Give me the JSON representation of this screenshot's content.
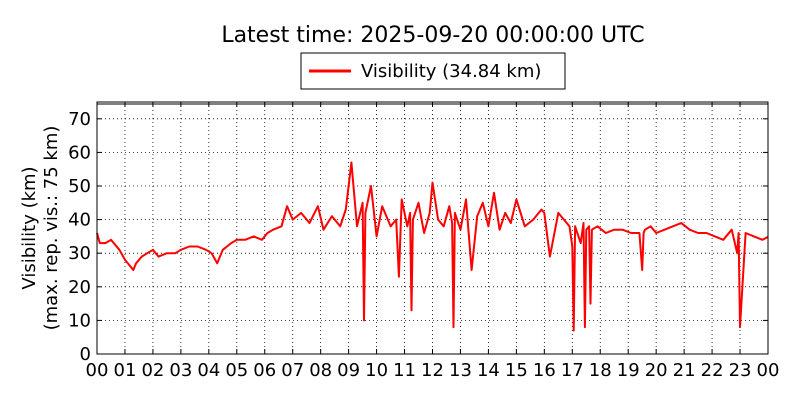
{
  "chart_data": {
    "type": "line",
    "title": "Latest time: 2025-09-20 00:00:00 UTC",
    "ylabel_lines": [
      "Visibility (km)",
      "(max. rep. vis.: 75 km)"
    ],
    "xlabel": "",
    "xlim": [
      0,
      24
    ],
    "ylim": [
      0,
      75
    ],
    "x_ticks": [
      "00",
      "01",
      "02",
      "03",
      "04",
      "05",
      "06",
      "07",
      "08",
      "09",
      "10",
      "11",
      "12",
      "13",
      "14",
      "15",
      "16",
      "17",
      "18",
      "19",
      "20",
      "21",
      "22",
      "23",
      "00"
    ],
    "y_ticks": [
      0,
      10,
      20,
      30,
      40,
      50,
      60,
      70
    ],
    "grid": true,
    "legend_position": "top-center",
    "series": [
      {
        "name": "Visibility (34.84 km)",
        "color": "#ff0000",
        "x": [
          0,
          0.1,
          0.3,
          0.5,
          0.8,
          1.0,
          1.2,
          1.3,
          1.4,
          1.6,
          1.8,
          2.0,
          2.2,
          2.5,
          2.8,
          3.0,
          3.3,
          3.6,
          3.9,
          4.1,
          4.3,
          4.5,
          4.8,
          5.0,
          5.3,
          5.6,
          5.9,
          6.1,
          6.3,
          6.6,
          6.8,
          7.0,
          7.3,
          7.6,
          7.9,
          8.1,
          8.4,
          8.7,
          8.9,
          9.1,
          9.3,
          9.5,
          9.55,
          9.6,
          9.8,
          10.0,
          10.2,
          10.5,
          10.7,
          10.8,
          10.9,
          11.1,
          11.2,
          11.25,
          11.3,
          11.5,
          11.7,
          11.9,
          12.0,
          12.2,
          12.4,
          12.6,
          12.7,
          12.75,
          12.8,
          13.0,
          13.2,
          13.4,
          13.6,
          13.8,
          14.0,
          14.2,
          14.4,
          14.6,
          14.8,
          15.0,
          15.3,
          15.6,
          15.9,
          16.0,
          16.2,
          16.5,
          16.7,
          16.9,
          17.0,
          17.05,
          17.1,
          17.3,
          17.4,
          17.45,
          17.5,
          17.6,
          17.65,
          17.7,
          17.9,
          18.2,
          18.5,
          18.8,
          19.1,
          19.4,
          19.5,
          19.55,
          19.6,
          19.8,
          20.0,
          20.3,
          20.6,
          20.9,
          21.2,
          21.5,
          21.8,
          22.1,
          22.4,
          22.7,
          22.9,
          22.95,
          23.0,
          23.2,
          23.5,
          23.8,
          24.0
        ],
        "y": [
          36,
          33,
          33,
          34,
          31,
          28,
          26,
          25,
          27,
          29,
          30,
          31,
          29,
          30,
          30,
          31,
          32,
          32,
          31,
          30,
          27,
          31,
          33,
          34,
          34,
          35,
          34,
          36,
          37,
          38,
          44,
          40,
          42,
          39,
          44,
          37,
          41,
          38,
          43,
          57,
          38,
          45,
          10,
          42,
          50,
          35,
          44,
          38,
          40,
          23,
          46,
          38,
          42,
          13,
          40,
          45,
          36,
          42,
          51,
          40,
          38,
          44,
          39,
          8,
          42,
          37,
          46,
          25,
          41,
          45,
          38,
          48,
          37,
          42,
          39,
          46,
          38,
          40,
          43,
          42,
          29,
          42,
          40,
          38,
          32,
          7,
          38,
          33,
          39,
          8,
          37,
          38,
          15,
          37,
          38,
          36,
          37,
          37,
          36,
          36,
          25,
          36,
          37,
          38,
          36,
          37,
          38,
          39,
          37,
          36,
          36,
          35,
          34,
          37,
          30,
          36,
          8,
          36,
          35,
          34,
          34.84
        ]
      }
    ]
  }
}
